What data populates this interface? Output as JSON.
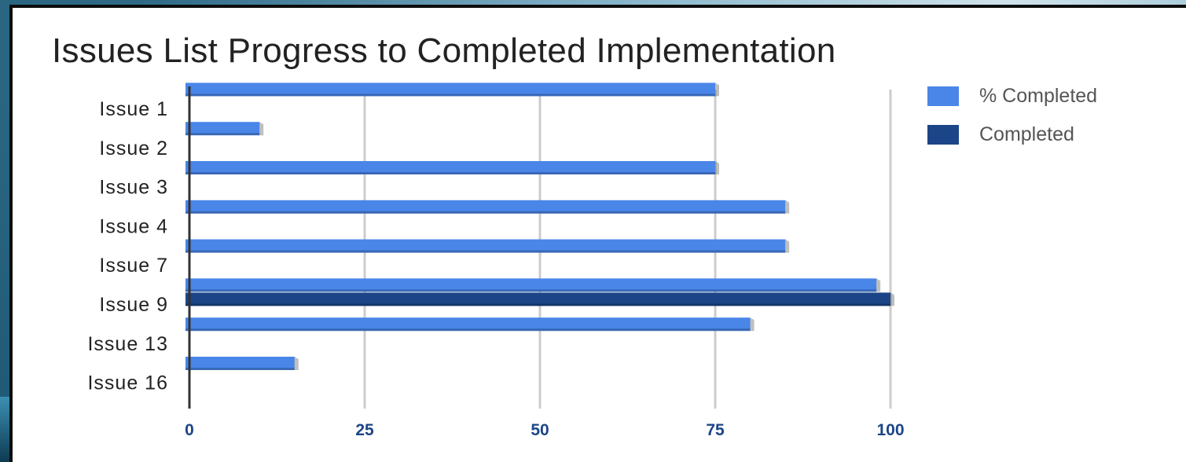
{
  "chart_data": {
    "type": "bar",
    "orientation": "horizontal",
    "title": "Issues List Progress to Completed Implementation",
    "categories": [
      "Issue 1",
      "Issue 2",
      "Issue 3",
      "Issue 4",
      "Issue 7",
      "Issue 9",
      "Issue 13",
      "Issue 16"
    ],
    "series": [
      {
        "name": "% Completed",
        "color": "#4a86e8",
        "values": [
          75,
          10,
          75,
          85,
          85,
          98,
          80,
          15
        ]
      },
      {
        "name": "Completed",
        "color": "#1c4587",
        "values": [
          0,
          0,
          0,
          0,
          0,
          100,
          0,
          0
        ]
      }
    ],
    "xlim": [
      0,
      100
    ],
    "xticks": [
      "0",
      "25",
      "50",
      "75",
      "100"
    ],
    "grid": true,
    "legend_position": "top-right"
  }
}
